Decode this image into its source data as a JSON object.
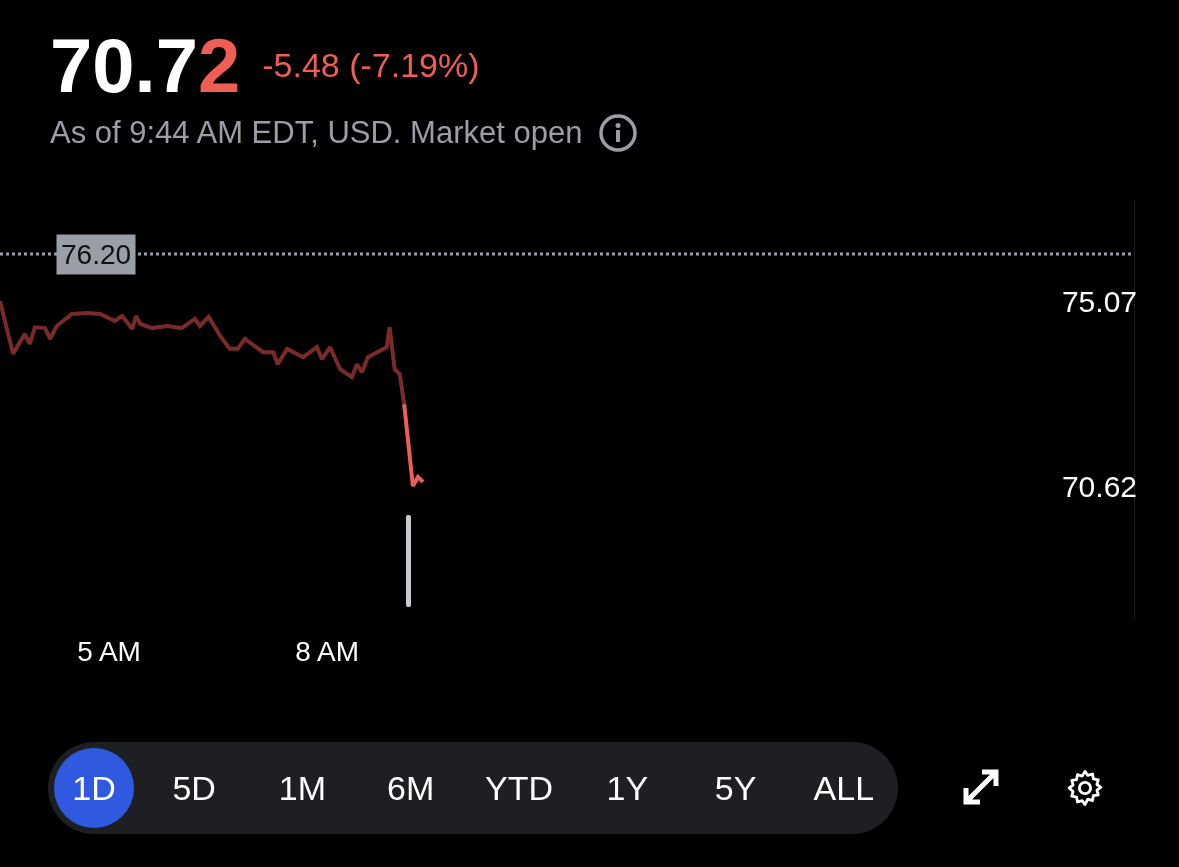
{
  "chart_data": {
    "type": "line",
    "title": "70.72",
    "subtitle": "-5.48 (-7.19%)",
    "annotations": [
      "As of 9:44 AM EDT, USD. Market open",
      "1D",
      "5D",
      "1M",
      "6M",
      "YTD",
      "1Y",
      "5Y",
      "ALL"
    ],
    "series": [
      {
        "color": "#7a2a2a",
        "x": [
          3.5,
          3.68,
          3.84,
          3.91,
          3.98,
          4.12,
          4.19,
          4.28,
          4.49,
          4.7,
          4.88,
          5.08,
          5.18,
          5.32,
          5.37,
          5.43,
          5.59,
          5.8,
          6.0,
          6.18,
          6.25,
          6.37,
          6.53,
          6.66,
          6.77,
          6.87,
          7.12,
          7.26,
          7.32,
          7.45,
          7.67,
          7.86,
          7.93,
          8.04,
          8.18,
          8.34,
          8.41,
          8.48,
          8.56,
          8.82,
          8.86,
          8.93,
          9.0,
          9.06
        ],
        "values": [
          75.07,
          73.8,
          74.28,
          74.04,
          74.44,
          74.42,
          74.16,
          74.47,
          74.76,
          74.78,
          74.76,
          74.59,
          74.71,
          74.4,
          74.71,
          74.52,
          74.42,
          74.47,
          74.42,
          74.64,
          74.47,
          74.69,
          74.23,
          73.92,
          73.92,
          74.16,
          73.84,
          73.84,
          73.55,
          73.92,
          73.72,
          73.96,
          73.67,
          73.96,
          73.43,
          73.24,
          73.55,
          73.36,
          73.72,
          73.96,
          74.44,
          73.43,
          73.31,
          72.59
        ]
      },
      {
        "color": "#ef5d55",
        "x": [
          9.06,
          9.18,
          9.25,
          9.32
        ],
        "values": [
          72.59,
          70.62,
          70.84,
          70.72
        ]
      }
    ],
    "xlim": [
      3.5,
      19.1
    ],
    "xticks": [
      {
        "value": 5,
        "label": "5 AM"
      },
      {
        "value": 8,
        "label": "8 AM"
      }
    ],
    "ylim": [
      67.4,
      77.5
    ],
    "yticks": [
      70.62,
      75.07
    ],
    "ref_lines": [
      {
        "axis": "y",
        "value": 76.2,
        "label": "76.20",
        "color": "#9a9ea6",
        "line_style": "dotted"
      }
    ],
    "grid": false,
    "marker": "none",
    "line_style": "solid"
  }
}
